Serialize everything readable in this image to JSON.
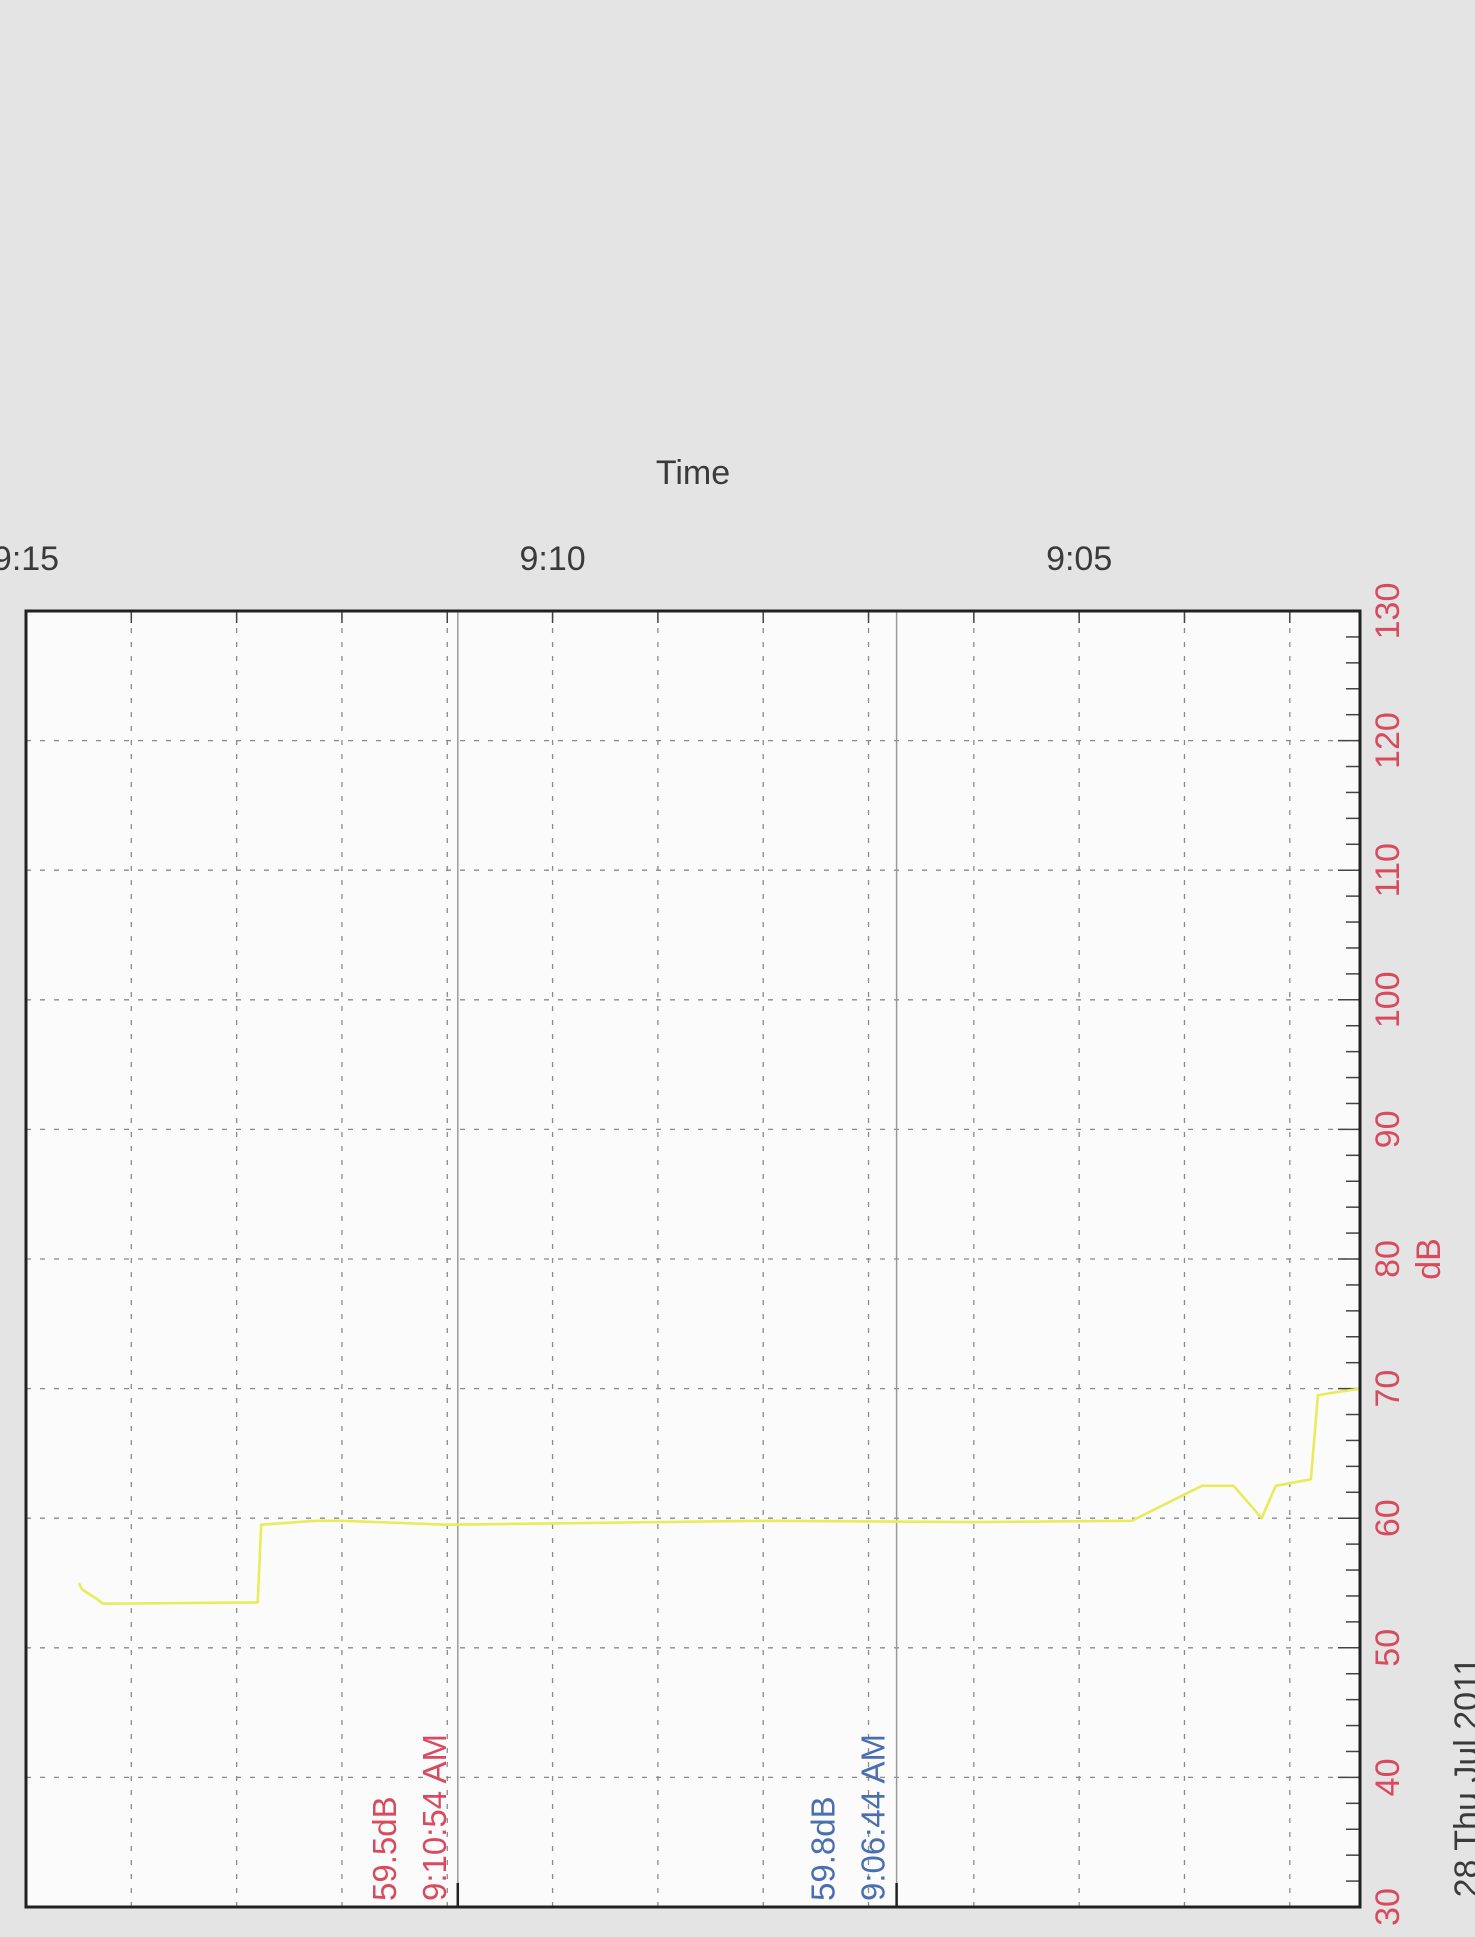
{
  "chart_data": {
    "type": "line",
    "xlabel": "Time",
    "ylabel": "dB",
    "date_label": "28 Thu Jul 2011",
    "ylim": [
      30,
      130
    ],
    "xlim": [
      "9:02:20",
      "9:15:00"
    ],
    "x_ticks": [
      "9:05",
      "9:10",
      "9:15"
    ],
    "y_ticks": [
      30,
      40,
      50,
      60,
      70,
      80,
      90,
      100,
      110,
      120,
      130
    ],
    "grid": true,
    "series": [
      {
        "color": "#e8ec5a",
        "x": [
          "9:02:20",
          "9:02:44",
          "9:02:48",
          "9:03:08",
          "9:03:16",
          "9:03:32",
          "9:03:50",
          "9:04:30",
          "9:06:00",
          "9:08:00",
          "9:10:00",
          "9:11:00",
          "9:12:00",
          "9:12:15",
          "9:12:46",
          "9:12:48",
          "9:14:16",
          "9:14:20",
          "9:14:28",
          "9:14:30"
        ],
        "y": [
          70,
          69.5,
          63,
          62.5,
          60,
          62.5,
          62.5,
          59.8,
          59.7,
          59.8,
          59.6,
          59.5,
          59.8,
          59.8,
          59.5,
          53.5,
          53.4,
          53.8,
          54.5,
          55
        ]
      }
    ],
    "cursors": [
      {
        "time": "9:06:44",
        "time_label": "9:06:44 AM",
        "value_label": "59.8dB",
        "color": "#4a6fb0"
      },
      {
        "time": "9:10:54",
        "time_label": "9:10:54 AM",
        "value_label": "59.5dB",
        "color": "#d84a5e"
      }
    ],
    "colors": {
      "tick_labels": "#d84a5e",
      "axis_titles": "#3a3a3a",
      "plot_background": "#fbfbfb",
      "frame": "#222222"
    }
  }
}
